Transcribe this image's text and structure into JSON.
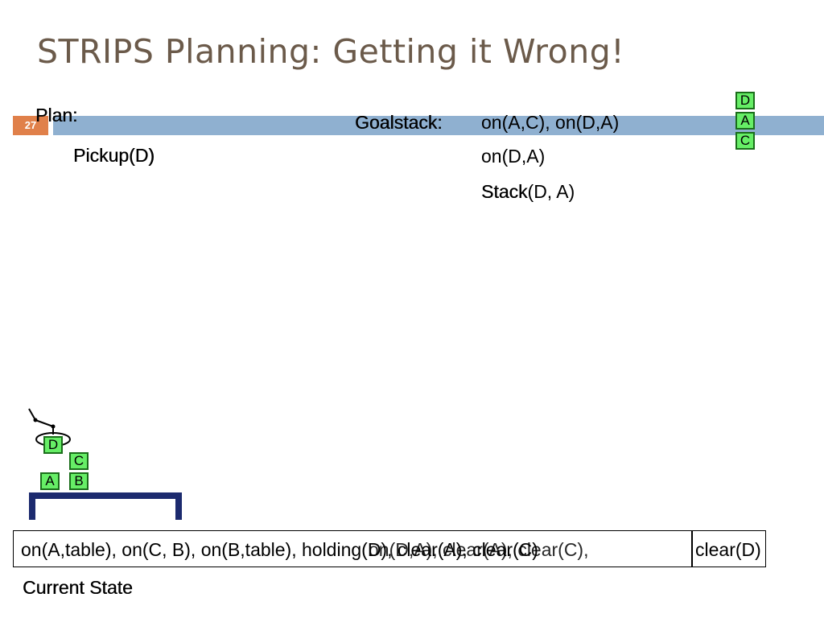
{
  "slide": {
    "title": "STRIPS Planning: Getting it Wrong!",
    "number": "27"
  },
  "plan": {
    "heading": "Plan:",
    "steps": [
      "Pickup(D)"
    ]
  },
  "goalstack": {
    "heading": "Goalstack:",
    "items": [
      "on(A,C), on(D,A)",
      "on(D,A)"
    ],
    "action_name": "Stack",
    "action_args": "(D, A)"
  },
  "goal_stack_blocks": [
    "D",
    "A",
    "C"
  ],
  "scene": {
    "held_block": "D",
    "table_blocks": [
      "A",
      "B"
    ],
    "stacked_block": "C",
    "block_color": "#66ee66",
    "table_color": "#1c2a6e"
  },
  "state": {
    "text_main": "on(A,table), on(C, B), on(B,table), holding(D), clear(A), clear(C)",
    "text_overlay": "on(D,A), clear(A), clear(C), ",
    "text_tail": "clear(D)",
    "caption": "Current State"
  },
  "colors": {
    "title": "#6b5a4a",
    "accent_bar": "#8fb0d0",
    "slide_number_bg": "#e0804a"
  }
}
